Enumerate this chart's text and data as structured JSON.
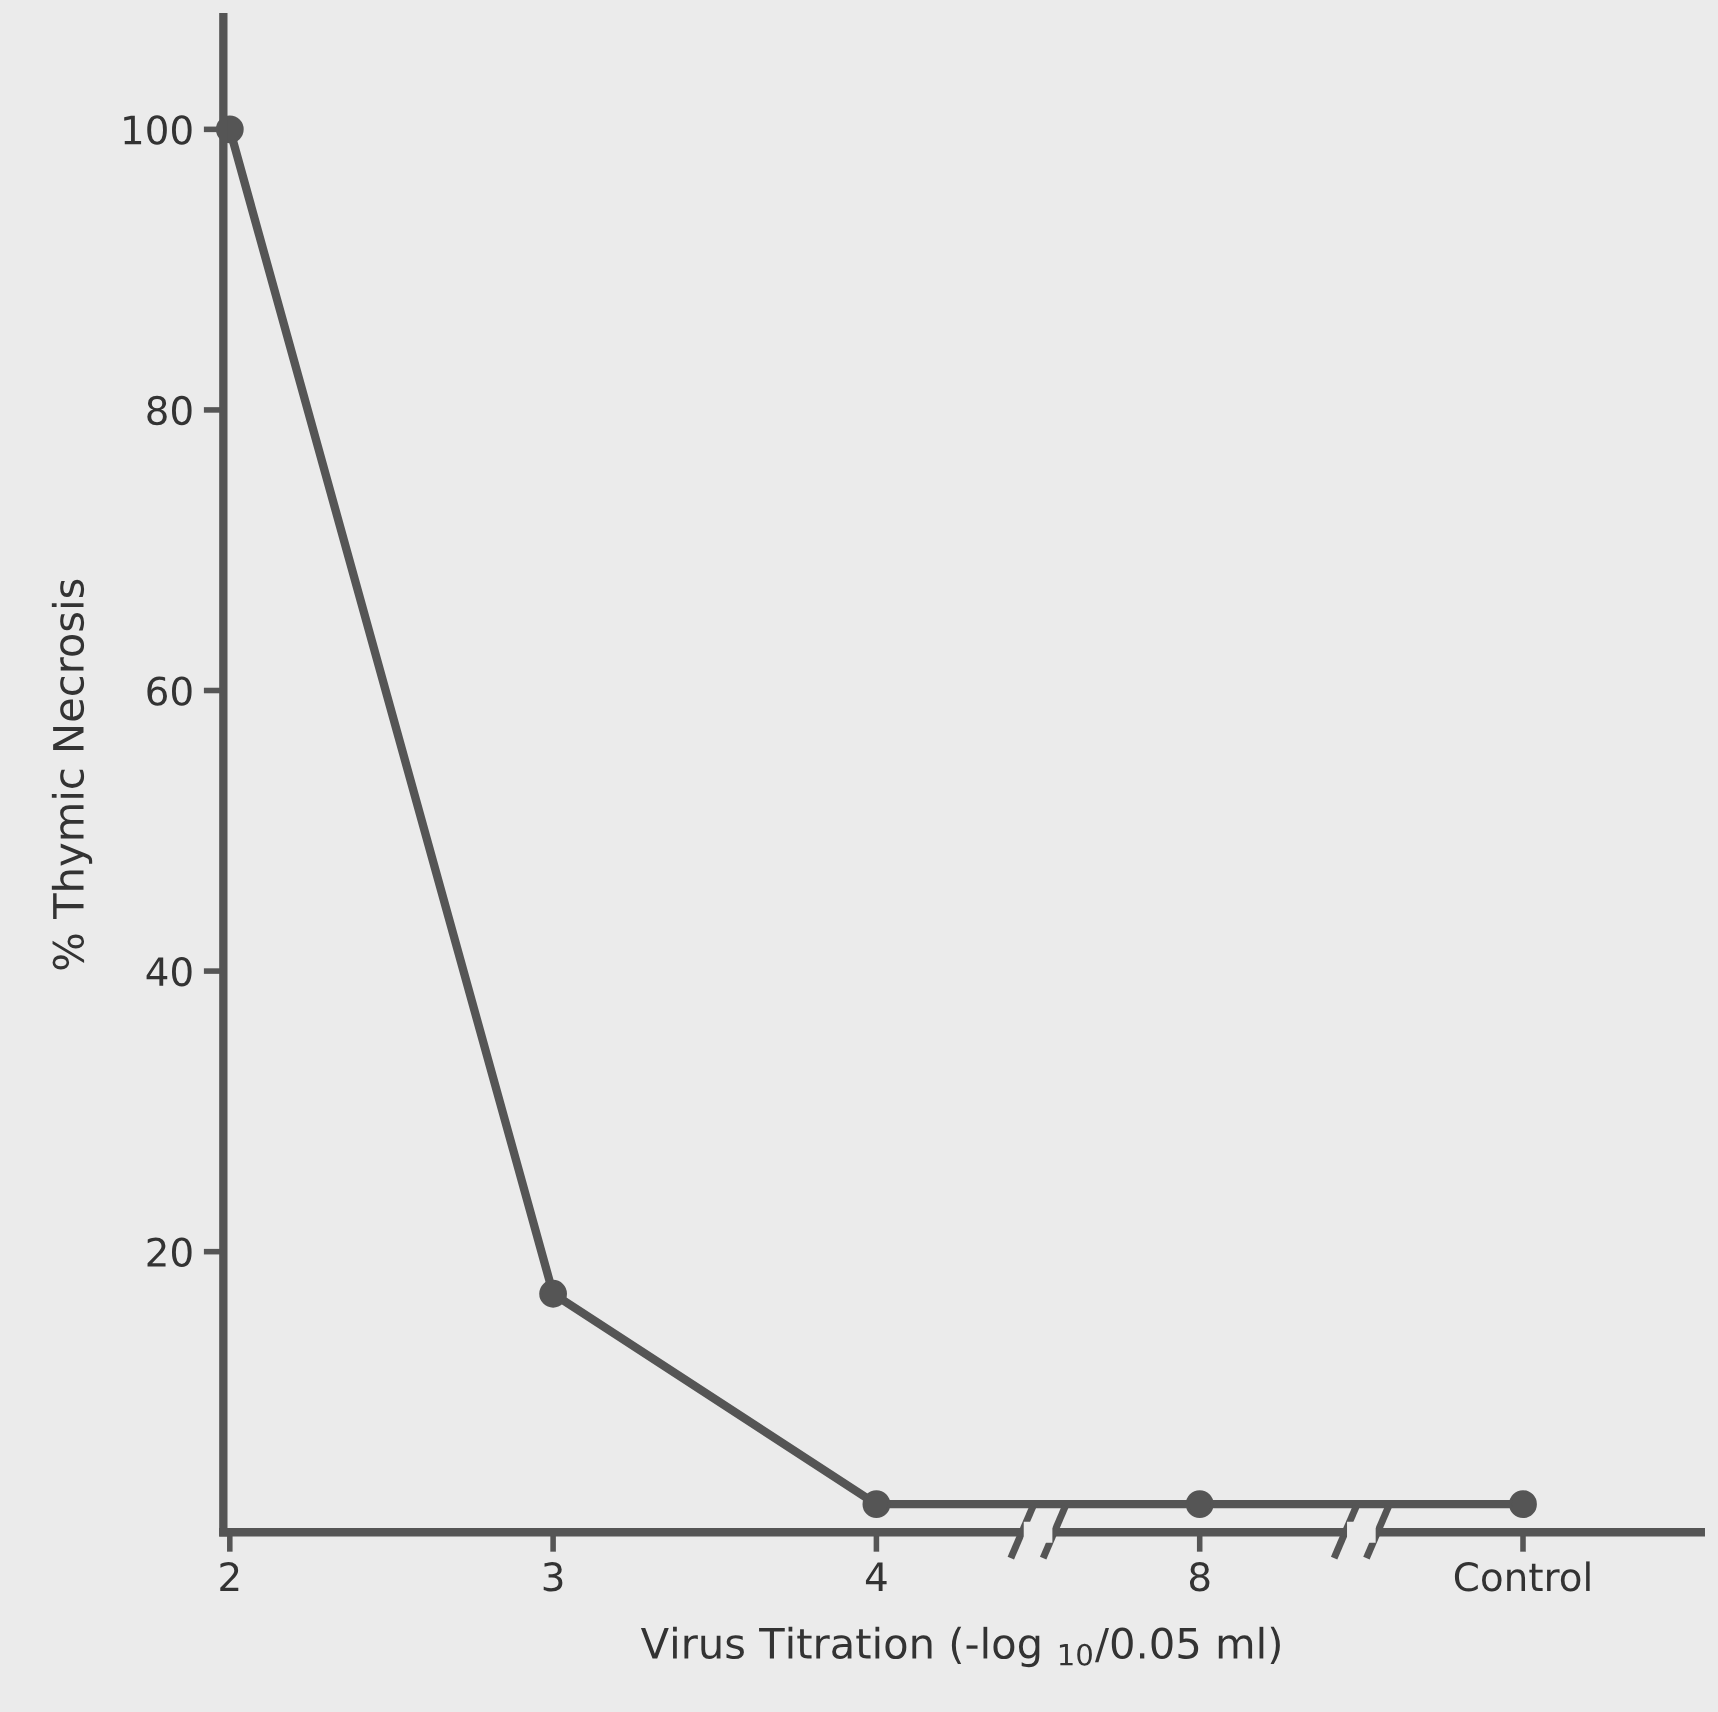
{
  "chart_data": {
    "type": "line",
    "xlabel": "Virus Titration (-log $_{10}$/0.05 ml)",
    "ylabel": "% Thymic Necrosis",
    "categories": [
      "2",
      "3",
      "4",
      "8",
      "Control"
    ],
    "series": [
      {
        "color": "#555555",
        "values": [
          100,
          17,
          2,
          2,
          2
        ]
      }
    ],
    "ylim": [
      0,
      108
    ],
    "yticks": [
      20,
      40,
      60,
      80,
      100
    ],
    "marker": "circle",
    "line_style": "solid",
    "grid": false,
    "legend": false
  }
}
